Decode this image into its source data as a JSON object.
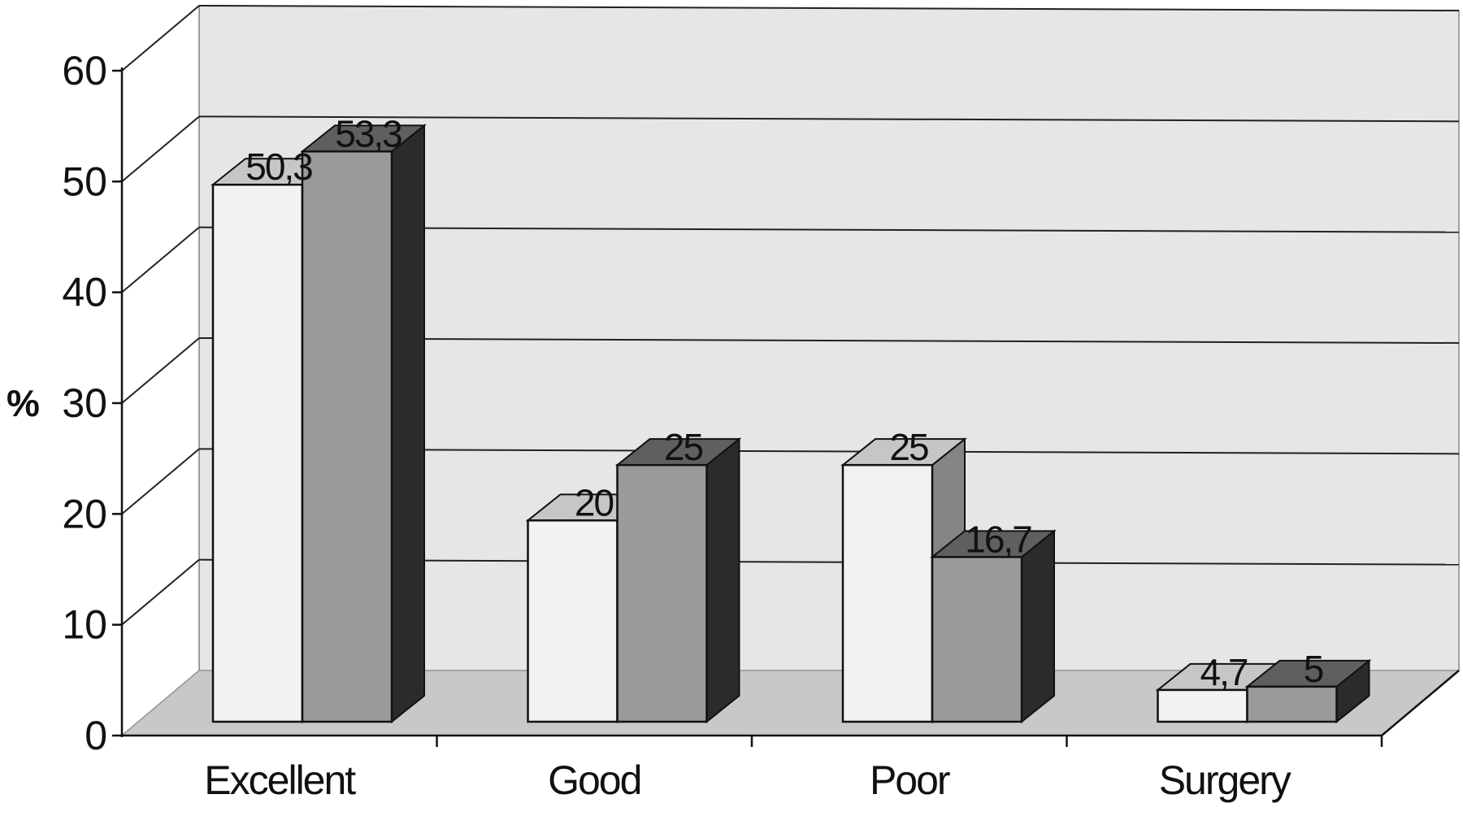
{
  "chart_data": {
    "type": "bar",
    "style": "3d-clustered-column",
    "categories": [
      "Excellent",
      "Good",
      "Poor",
      "Surgery"
    ],
    "series": [
      {
        "values": [
          50.3,
          20,
          25,
          4.7
        ],
        "color": "#f2f2f2"
      },
      {
        "values": [
          53.3,
          25,
          16.7,
          5
        ],
        "color": "#9a9a9a"
      }
    ],
    "data_labels": [
      [
        "50,3",
        "20",
        "25",
        "4,7"
      ],
      [
        "53,3",
        "25",
        "16,7",
        "5"
      ]
    ],
    "ylabel": "%",
    "xlabel": "",
    "ylim": [
      0,
      60
    ],
    "yticks": [
      "0",
      "10",
      "20",
      "30",
      "40",
      "50",
      "60"
    ],
    "grid": true,
    "legend": "none",
    "colors": {
      "wall": "#e6e6e6",
      "floor": "#c8c8c8",
      "gridline": "#222222",
      "axis": "#111111"
    }
  }
}
